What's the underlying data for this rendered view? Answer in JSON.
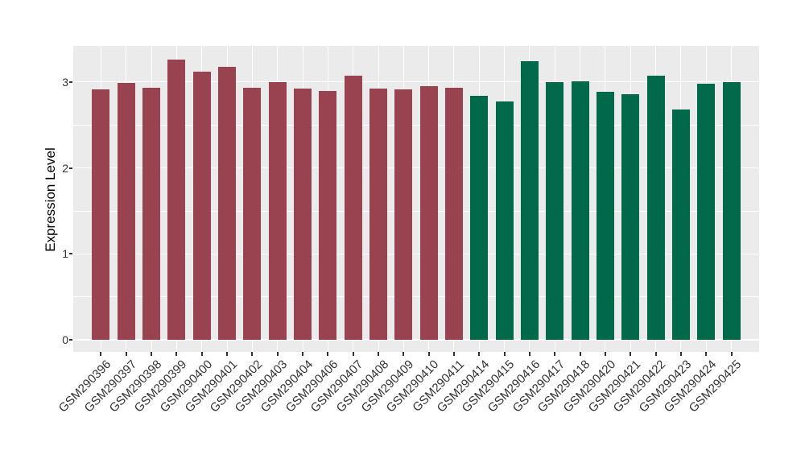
{
  "chart_data": {
    "type": "bar",
    "title": "",
    "xlabel": "",
    "ylabel": "Expression Level",
    "categories": [
      "GSM290396",
      "GSM290397",
      "GSM290398",
      "GSM290399",
      "GSM290400",
      "GSM290401",
      "GSM290402",
      "GSM290403",
      "GSM290404",
      "GSM290406",
      "GSM290407",
      "GSM290408",
      "GSM290409",
      "GSM290410",
      "GSM290411",
      "GSM290414",
      "GSM290415",
      "GSM290416",
      "GSM290417",
      "GSM290418",
      "GSM290420",
      "GSM290421",
      "GSM290422",
      "GSM290423",
      "GSM290424",
      "GSM290425"
    ],
    "values": [
      2.91,
      2.99,
      2.93,
      3.26,
      3.12,
      3.18,
      2.93,
      3.0,
      2.92,
      2.9,
      3.07,
      2.92,
      2.91,
      2.95,
      2.93,
      2.84,
      2.77,
      3.24,
      3.0,
      3.01,
      2.89,
      2.86,
      3.07,
      2.68,
      2.98,
      3.0
    ],
    "bar_groups": [
      0,
      0,
      0,
      0,
      0,
      0,
      0,
      0,
      0,
      0,
      0,
      0,
      0,
      0,
      0,
      1,
      1,
      1,
      1,
      1,
      1,
      1,
      1,
      1,
      1,
      1
    ],
    "group_colors": [
      "#9A4350",
      "#00694A"
    ],
    "yticks": [
      0,
      1,
      2,
      3
    ],
    "yticks_minor": [
      0.5,
      1.5,
      2.5
    ],
    "ylim": [
      -0.14,
      3.42
    ],
    "bar_width_fraction": 0.7,
    "legend": "none",
    "grid": true,
    "colors": {
      "panel_background": "#EBEBEB",
      "gridline": "#FFFFFF",
      "tick_mark": "#333333",
      "tick_label": "#333333",
      "axis_title": "#000000"
    }
  }
}
